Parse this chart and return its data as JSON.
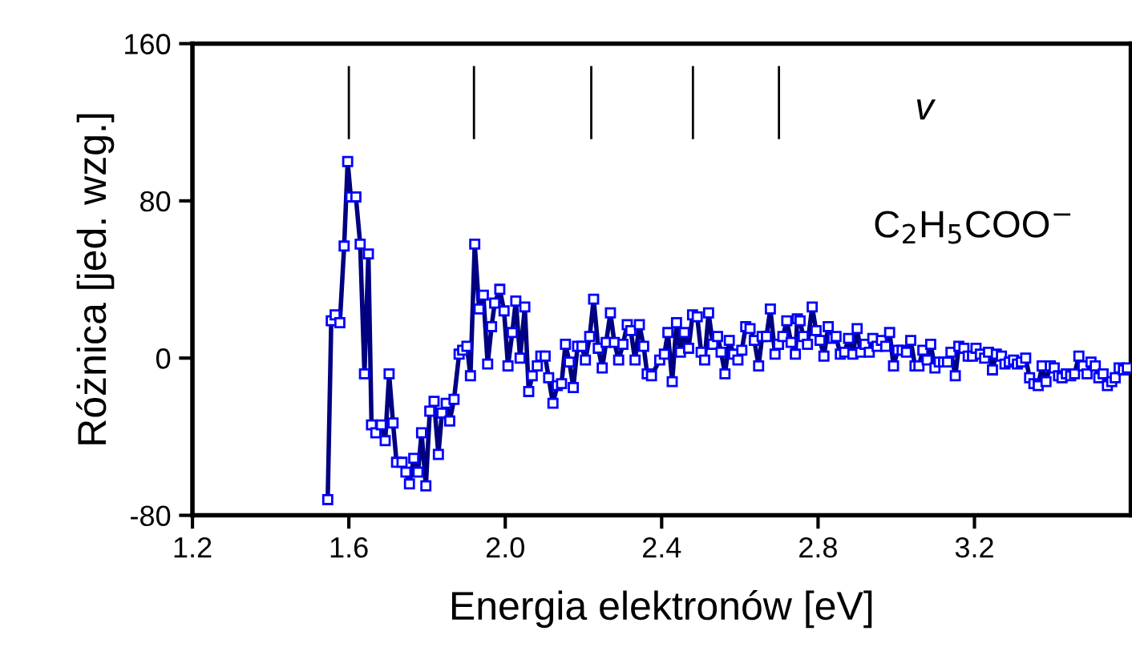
{
  "chart_data": {
    "type": "line",
    "xlabel": "Energia elektronów [eV]",
    "ylabel": "Różnica [jed. wzg.]",
    "xlim": [
      1.2,
      3.6
    ],
    "xticks": [
      1.2,
      1.6,
      {
        "value": 2,
        "label": "2.0"
      },
      2.4,
      2.8,
      3.2
    ],
    "ylim": [
      -80,
      160
    ],
    "yticks": [
      -80,
      0,
      80,
      160
    ],
    "grid": false,
    "marker": "square",
    "line_style": "solid",
    "annotations": [
      "v",
      "C$_{2}$H$_{5}$COO$^{−}$"
    ],
    "ref_lines": [
      {
        "axis": "x",
        "value": 1.6,
        "color": "#000000"
      },
      {
        "axis": "x",
        "value": 1.92,
        "color": "#000000"
      },
      {
        "axis": "x",
        "value": 2.22,
        "color": "#000000"
      },
      {
        "axis": "x",
        "value": 2.48,
        "color": "#000000"
      },
      {
        "axis": "x",
        "value": 2.7,
        "color": "#000000"
      }
    ],
    "series": [
      {
        "color": "#000080",
        "x": [
          1.546,
          1.555,
          1.565,
          1.577,
          1.588,
          1.597,
          1.605,
          1.618,
          1.629,
          1.64,
          1.65,
          1.658,
          1.669,
          1.683,
          1.693,
          1.703,
          1.713,
          1.722,
          1.736,
          1.746,
          1.755,
          1.766,
          1.777,
          1.786,
          1.797,
          1.807,
          1.818,
          1.829,
          1.838,
          1.849,
          1.858,
          1.869,
          1.882,
          1.891,
          1.902,
          1.911,
          1.922,
          1.933,
          1.944,
          1.955,
          1.965,
          1.973,
          1.986,
          1.997,
          2.007,
          2.018,
          2.027,
          2.038,
          2.05,
          2.06,
          2.069,
          2.082,
          2.091,
          2.102,
          2.111,
          2.122,
          2.133,
          2.144,
          2.154,
          2.164,
          2.174,
          2.185,
          2.196,
          2.205,
          2.216,
          2.226,
          2.238,
          2.248,
          2.258,
          2.269,
          2.279,
          2.29,
          2.301,
          2.312,
          2.321,
          2.332,
          2.343,
          2.354,
          2.363,
          2.374,
          2.395,
          2.407,
          2.416,
          2.427,
          2.438,
          2.448,
          2.458,
          2.469,
          2.479,
          2.491,
          2.501,
          2.51,
          2.52,
          2.531,
          2.543,
          2.552,
          2.562,
          2.573,
          2.584,
          2.595,
          2.605,
          2.615,
          2.626,
          2.637,
          2.648,
          2.657,
          2.668,
          2.678,
          2.69,
          2.699,
          2.71,
          2.72,
          2.731,
          2.742,
          2.747,
          2.754,
          2.762,
          2.773,
          2.785,
          2.795,
          2.805,
          2.815,
          2.826,
          2.838,
          2.846,
          2.857,
          2.868,
          2.878,
          2.889,
          2.9,
          2.909,
          2.92,
          2.931,
          2.94,
          2.951,
          2.962,
          2.973,
          2.983,
          2.993,
          3.004,
          3.015,
          3.026,
          3.037,
          3.048,
          3.058,
          3.068,
          3.079,
          3.088,
          3.099,
          3.11,
          3.121,
          3.131,
          3.14,
          3.151,
          3.16,
          3.173,
          3.184,
          3.195,
          3.204,
          3.215,
          3.226,
          3.236,
          3.246,
          3.256,
          3.269,
          3.278,
          3.289,
          3.3,
          3.31,
          3.32,
          3.331,
          3.341,
          3.352,
          3.363,
          3.373,
          3.383,
          3.394,
          3.404,
          3.415,
          3.424,
          3.435,
          3.446,
          3.456,
          3.467,
          3.478,
          3.488,
          3.498,
          3.509,
          3.518,
          3.529,
          3.54,
          3.551,
          3.56,
          3.57,
          3.581,
          3.591
        ],
        "values": [
          -72,
          19,
          22,
          18,
          57,
          100,
          82,
          82,
          58,
          -8,
          53,
          -34,
          -38,
          -34,
          -42,
          -8,
          -33,
          -53,
          -53,
          -58,
          -64,
          -51,
          -58,
          -38,
          -65,
          -27,
          -22,
          -49,
          -28,
          -23,
          -32,
          -21,
          2,
          4,
          6,
          -9,
          58,
          25,
          32,
          -3,
          16,
          28,
          35,
          24,
          -4,
          13,
          29,
          0,
          26,
          -17,
          -9,
          -4,
          1,
          1,
          -10,
          -23,
          -14,
          -13,
          7,
          -2,
          -15,
          6,
          6,
          -1,
          11,
          30,
          5,
          -5,
          8,
          23,
          8,
          -1,
          7,
          17,
          14,
          -1,
          17,
          6,
          -8,
          -9,
          -1,
          2,
          13,
          -12,
          18,
          3,
          13,
          5,
          22,
          21,
          3,
          -1,
          23,
          7,
          11,
          3,
          -8,
          9,
          2,
          -1,
          4,
          16,
          15,
          9,
          -4,
          11,
          11,
          25,
          2,
          7,
          11,
          19,
          8,
          2,
          20,
          19,
          11,
          7,
          26,
          14,
          9,
          1,
          16,
          10,
          11,
          2,
          3,
          10,
          2,
          15,
          3,
          7,
          3,
          10,
          6,
          9,
          6,
          13,
          -4,
          4,
          4,
          3,
          9,
          -4,
          -4,
          4,
          -1,
          7,
          -5,
          -2,
          -2,
          -2,
          3,
          -9,
          6,
          5,
          1,
          1,
          5,
          2,
          0,
          3,
          -6,
          2,
          1,
          -3,
          -2,
          -1,
          -3,
          -2,
          0,
          -10,
          -13,
          -14,
          -4,
          -12,
          -4,
          -5,
          -9,
          -10,
          -8,
          -9,
          -8,
          1,
          -4,
          -8,
          -2,
          -4,
          -10,
          -8,
          -14,
          -12,
          -10,
          -5,
          -6,
          -5
        ]
      }
    ]
  }
}
